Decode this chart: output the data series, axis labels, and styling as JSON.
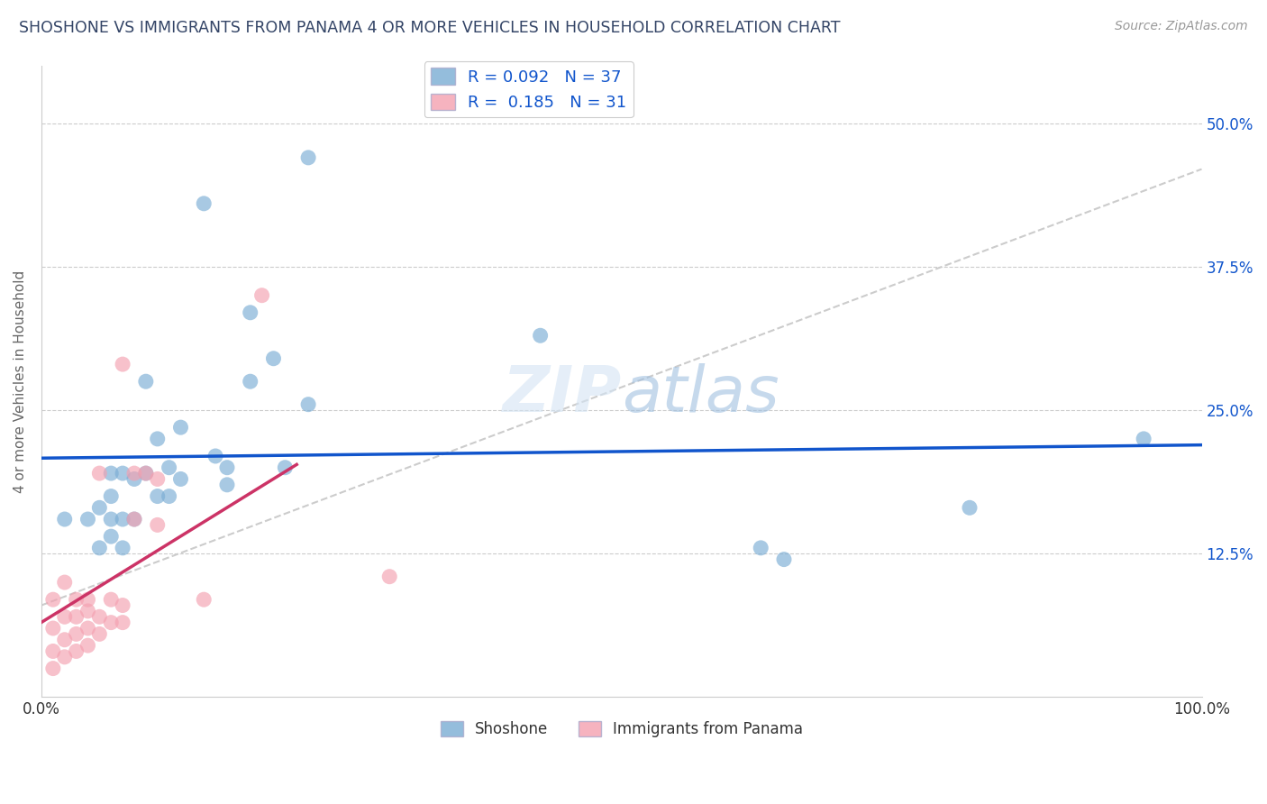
{
  "title": "SHOSHONE VS IMMIGRANTS FROM PANAMA 4 OR MORE VEHICLES IN HOUSEHOLD CORRELATION CHART",
  "source_text": "Source: ZipAtlas.com",
  "ylabel": "4 or more Vehicles in Household",
  "xlabel": "",
  "shoshone_color": "#7aadd4",
  "panama_color": "#f4a0b0",
  "shoshone_line_color": "#1155cc",
  "panama_line_color": "#cc3366",
  "trend_line_color": "#cccccc",
  "background_color": "#ffffff",
  "grid_color": "#cccccc",
  "shoshone_x": [
    0.02,
    0.04,
    0.05,
    0.05,
    0.06,
    0.06,
    0.06,
    0.06,
    0.07,
    0.07,
    0.07,
    0.08,
    0.08,
    0.09,
    0.09,
    0.1,
    0.1,
    0.11,
    0.11,
    0.12,
    0.12,
    0.14,
    0.15,
    0.16,
    0.16,
    0.18,
    0.18,
    0.2,
    0.21,
    0.23,
    0.23,
    0.43,
    0.62,
    0.64,
    0.8,
    0.95
  ],
  "shoshone_y": [
    0.155,
    0.155,
    0.13,
    0.165,
    0.155,
    0.14,
    0.175,
    0.195,
    0.13,
    0.155,
    0.195,
    0.155,
    0.19,
    0.195,
    0.275,
    0.175,
    0.225,
    0.175,
    0.2,
    0.19,
    0.235,
    0.43,
    0.21,
    0.185,
    0.2,
    0.275,
    0.335,
    0.295,
    0.2,
    0.255,
    0.47,
    0.315,
    0.13,
    0.12,
    0.165,
    0.225
  ],
  "panama_x": [
    0.01,
    0.01,
    0.01,
    0.01,
    0.02,
    0.02,
    0.02,
    0.02,
    0.03,
    0.03,
    0.03,
    0.03,
    0.04,
    0.04,
    0.04,
    0.04,
    0.05,
    0.05,
    0.05,
    0.06,
    0.06,
    0.07,
    0.07,
    0.07,
    0.08,
    0.08,
    0.09,
    0.1,
    0.1,
    0.14,
    0.19,
    0.3
  ],
  "panama_y": [
    0.025,
    0.04,
    0.06,
    0.085,
    0.035,
    0.05,
    0.07,
    0.1,
    0.04,
    0.055,
    0.07,
    0.085,
    0.045,
    0.06,
    0.075,
    0.085,
    0.055,
    0.07,
    0.195,
    0.065,
    0.085,
    0.065,
    0.08,
    0.29,
    0.155,
    0.195,
    0.195,
    0.19,
    0.15,
    0.085,
    0.35,
    0.105
  ],
  "xlim": [
    0.0,
    1.0
  ],
  "ylim": [
    0.0,
    0.55
  ],
  "y_ticks": [
    0.125,
    0.25,
    0.375,
    0.5
  ],
  "y_tick_labels": [
    "12.5%",
    "25.0%",
    "37.5%",
    "50.0%"
  ],
  "x_ticks": [
    0.0,
    0.1,
    0.2,
    0.3,
    0.4,
    0.5,
    0.6,
    0.7,
    0.8,
    0.9,
    1.0
  ],
  "shoshone_line_x": [
    0.0,
    1.0
  ],
  "shoshone_line_y": [
    0.163,
    0.208
  ],
  "panama_line_x": [
    0.0,
    0.22
  ],
  "panama_line_y": [
    0.068,
    0.175
  ],
  "diag_line_x": [
    0.0,
    1.0
  ],
  "diag_line_y": [
    0.08,
    0.46
  ]
}
